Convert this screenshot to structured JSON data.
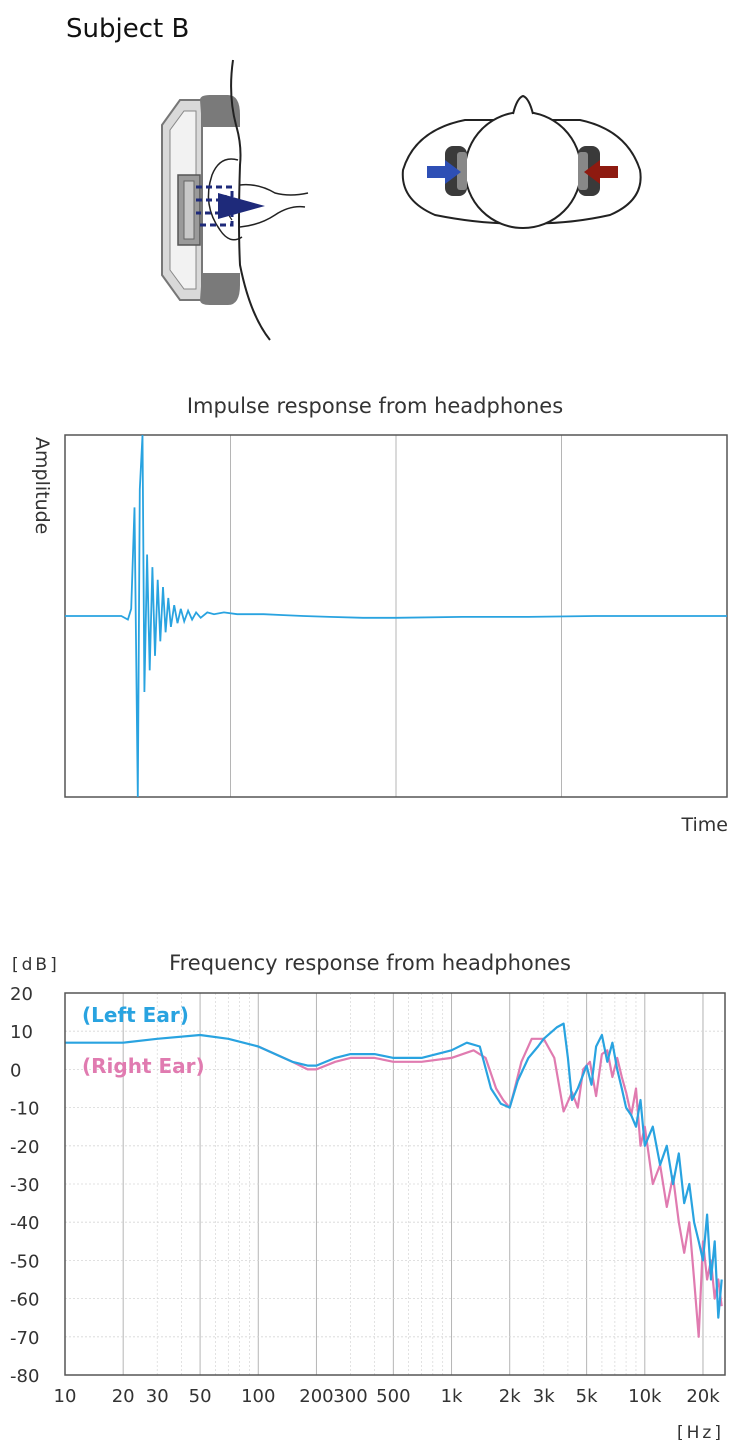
{
  "subject_label": "Subject B",
  "illustrations": {
    "ear_cross_section": "headphone-ear-cross-section",
    "head_top_view": "head-top-view-with-headphones",
    "colors": {
      "left_arrow": "#2e4fb5",
      "right_arrow": "#8e1a10",
      "cushion": "#7a7a7a",
      "dashed_path": "#1e2a7a"
    }
  },
  "chart_data": [
    {
      "type": "line",
      "title": "Impulse response from headphones",
      "ylabel": "Amplitude",
      "xlabel": "Time",
      "xlim": [
        0,
        1
      ],
      "ylim": [
        -1,
        1
      ],
      "grid": "vertical",
      "colors": {
        "left": "#29a3e0",
        "right": "#e07bb0",
        "axis": "#555555",
        "grid": "#b5b5b5"
      },
      "note_units": "normalized (no numeric ticks shown)",
      "series": [
        {
          "x": [
            0,
            0.085,
            0.095,
            0.1,
            0.105,
            0.11,
            0.113,
            0.117,
            0.12,
            0.124,
            0.128,
            0.132,
            0.136,
            0.14,
            0.144,
            0.148,
            0.152,
            0.156,
            0.16,
            0.165,
            0.17,
            0.175,
            0.18,
            0.186,
            0.192,
            0.198,
            0.205,
            0.215,
            0.225,
            0.24,
            0.26,
            0.28,
            0.3,
            0.33,
            0.36,
            0.4,
            0.45,
            0.5,
            0.6,
            0.7,
            0.8,
            0.9,
            1.0
          ],
          "y": [
            0,
            0,
            -0.02,
            0.04,
            0.6,
            -1.0,
            0.7,
            1.0,
            -0.42,
            0.34,
            -0.3,
            0.27,
            -0.22,
            0.2,
            -0.14,
            0.16,
            -0.09,
            0.1,
            -0.06,
            0.06,
            -0.04,
            0.04,
            -0.03,
            0.03,
            -0.02,
            0.02,
            -0.01,
            0.02,
            0.01,
            0.02,
            0.01,
            0.01,
            0.01,
            0.005,
            0.0,
            -0.005,
            -0.01,
            -0.01,
            -0.005,
            -0.005,
            0.0,
            0.0,
            0.0
          ]
        }
      ]
    },
    {
      "type": "line",
      "title": "Frequency response from headphones",
      "ylabel": "[dB]",
      "xlabel": "[Hz]",
      "xscale": "log",
      "xlim": [
        10,
        26000
      ],
      "ylim": [
        -80,
        20
      ],
      "yticks": [
        20,
        10,
        0,
        -10,
        -20,
        -30,
        -40,
        -50,
        -60,
        -70,
        -80
      ],
      "xtick_labels": [
        {
          "value": 10,
          "label": "10"
        },
        {
          "value": 20,
          "label": "20"
        },
        {
          "value": 30,
          "label": "30"
        },
        {
          "value": 50,
          "label": "50"
        },
        {
          "value": 100,
          "label": "100"
        },
        {
          "value": 200,
          "label": "200"
        },
        {
          "value": 300,
          "label": "300"
        },
        {
          "value": 500,
          "label": "500"
        },
        {
          "value": 1000,
          "label": "1k"
        },
        {
          "value": 2000,
          "label": "2k"
        },
        {
          "value": 3000,
          "label": "3k"
        },
        {
          "value": 5000,
          "label": "5k"
        },
        {
          "value": 10000,
          "label": "10k"
        },
        {
          "value": 20000,
          "label": "20k"
        }
      ],
      "grid": "log-vertical and horizontal",
      "legend_position": "top-left",
      "colors": {
        "axis": "#555555",
        "grid_major": "#b5b5b5",
        "grid_minor": "#d6d6d6"
      },
      "series": [
        {
          "name": "(Right Ear)",
          "color": "#e07bb0",
          "x": [
            100,
            150,
            180,
            200,
            250,
            300,
            400,
            500,
            700,
            1000,
            1300,
            1500,
            1700,
            1850,
            2000,
            2100,
            2300,
            2600,
            3000,
            3400,
            3800,
            4200,
            4500,
            4800,
            5200,
            5600,
            6000,
            6400,
            6800,
            7200,
            7600,
            8000,
            8500,
            9000,
            9500,
            10000,
            11000,
            12000,
            13000,
            14000,
            15000,
            16000,
            17000,
            18000,
            19000,
            20000,
            21000,
            22000,
            23000,
            24000,
            25000
          ],
          "y": [
            6,
            2,
            0,
            0,
            2,
            3,
            3,
            2,
            2,
            3,
            5,
            3,
            -5,
            -8,
            -10,
            -6,
            2,
            8,
            8,
            3,
            -11,
            -6,
            -10,
            0,
            2,
            -7,
            4,
            5,
            -2,
            3,
            -2,
            -6,
            -12,
            -5,
            -20,
            -15,
            -30,
            -25,
            -36,
            -28,
            -40,
            -48,
            -40,
            -55,
            -70,
            -45,
            -55,
            -50,
            -60,
            -55,
            -62
          ]
        },
        {
          "name": "(Left Ear)",
          "color": "#29a3e0",
          "x": [
            10,
            20,
            30,
            50,
            70,
            100,
            150,
            180,
            200,
            250,
            300,
            400,
            500,
            700,
            1000,
            1200,
            1400,
            1600,
            1800,
            2000,
            2200,
            2500,
            2800,
            3000,
            3500,
            3800,
            4000,
            4200,
            4500,
            5000,
            5300,
            5600,
            6000,
            6400,
            6800,
            7200,
            7600,
            8000,
            8500,
            9000,
            9500,
            10000,
            11000,
            12000,
            13000,
            14000,
            15000,
            16000,
            17000,
            18000,
            19000,
            20000,
            21000,
            22000,
            23000,
            24000,
            25000
          ],
          "y": [
            7,
            7,
            8,
            9,
            8,
            6,
            2,
            1,
            1,
            3,
            4,
            4,
            3,
            3,
            5,
            7,
            6,
            -5,
            -9,
            -10,
            -3,
            3,
            6,
            8,
            11,
            12,
            3,
            -8,
            -5,
            1,
            -4,
            6,
            9,
            2,
            7,
            0,
            -5,
            -10,
            -12,
            -15,
            -8,
            -20,
            -15,
            -25,
            -20,
            -30,
            -22,
            -35,
            -30,
            -40,
            -45,
            -50,
            -38,
            -55,
            -45,
            -65,
            -55
          ]
        }
      ]
    }
  ]
}
